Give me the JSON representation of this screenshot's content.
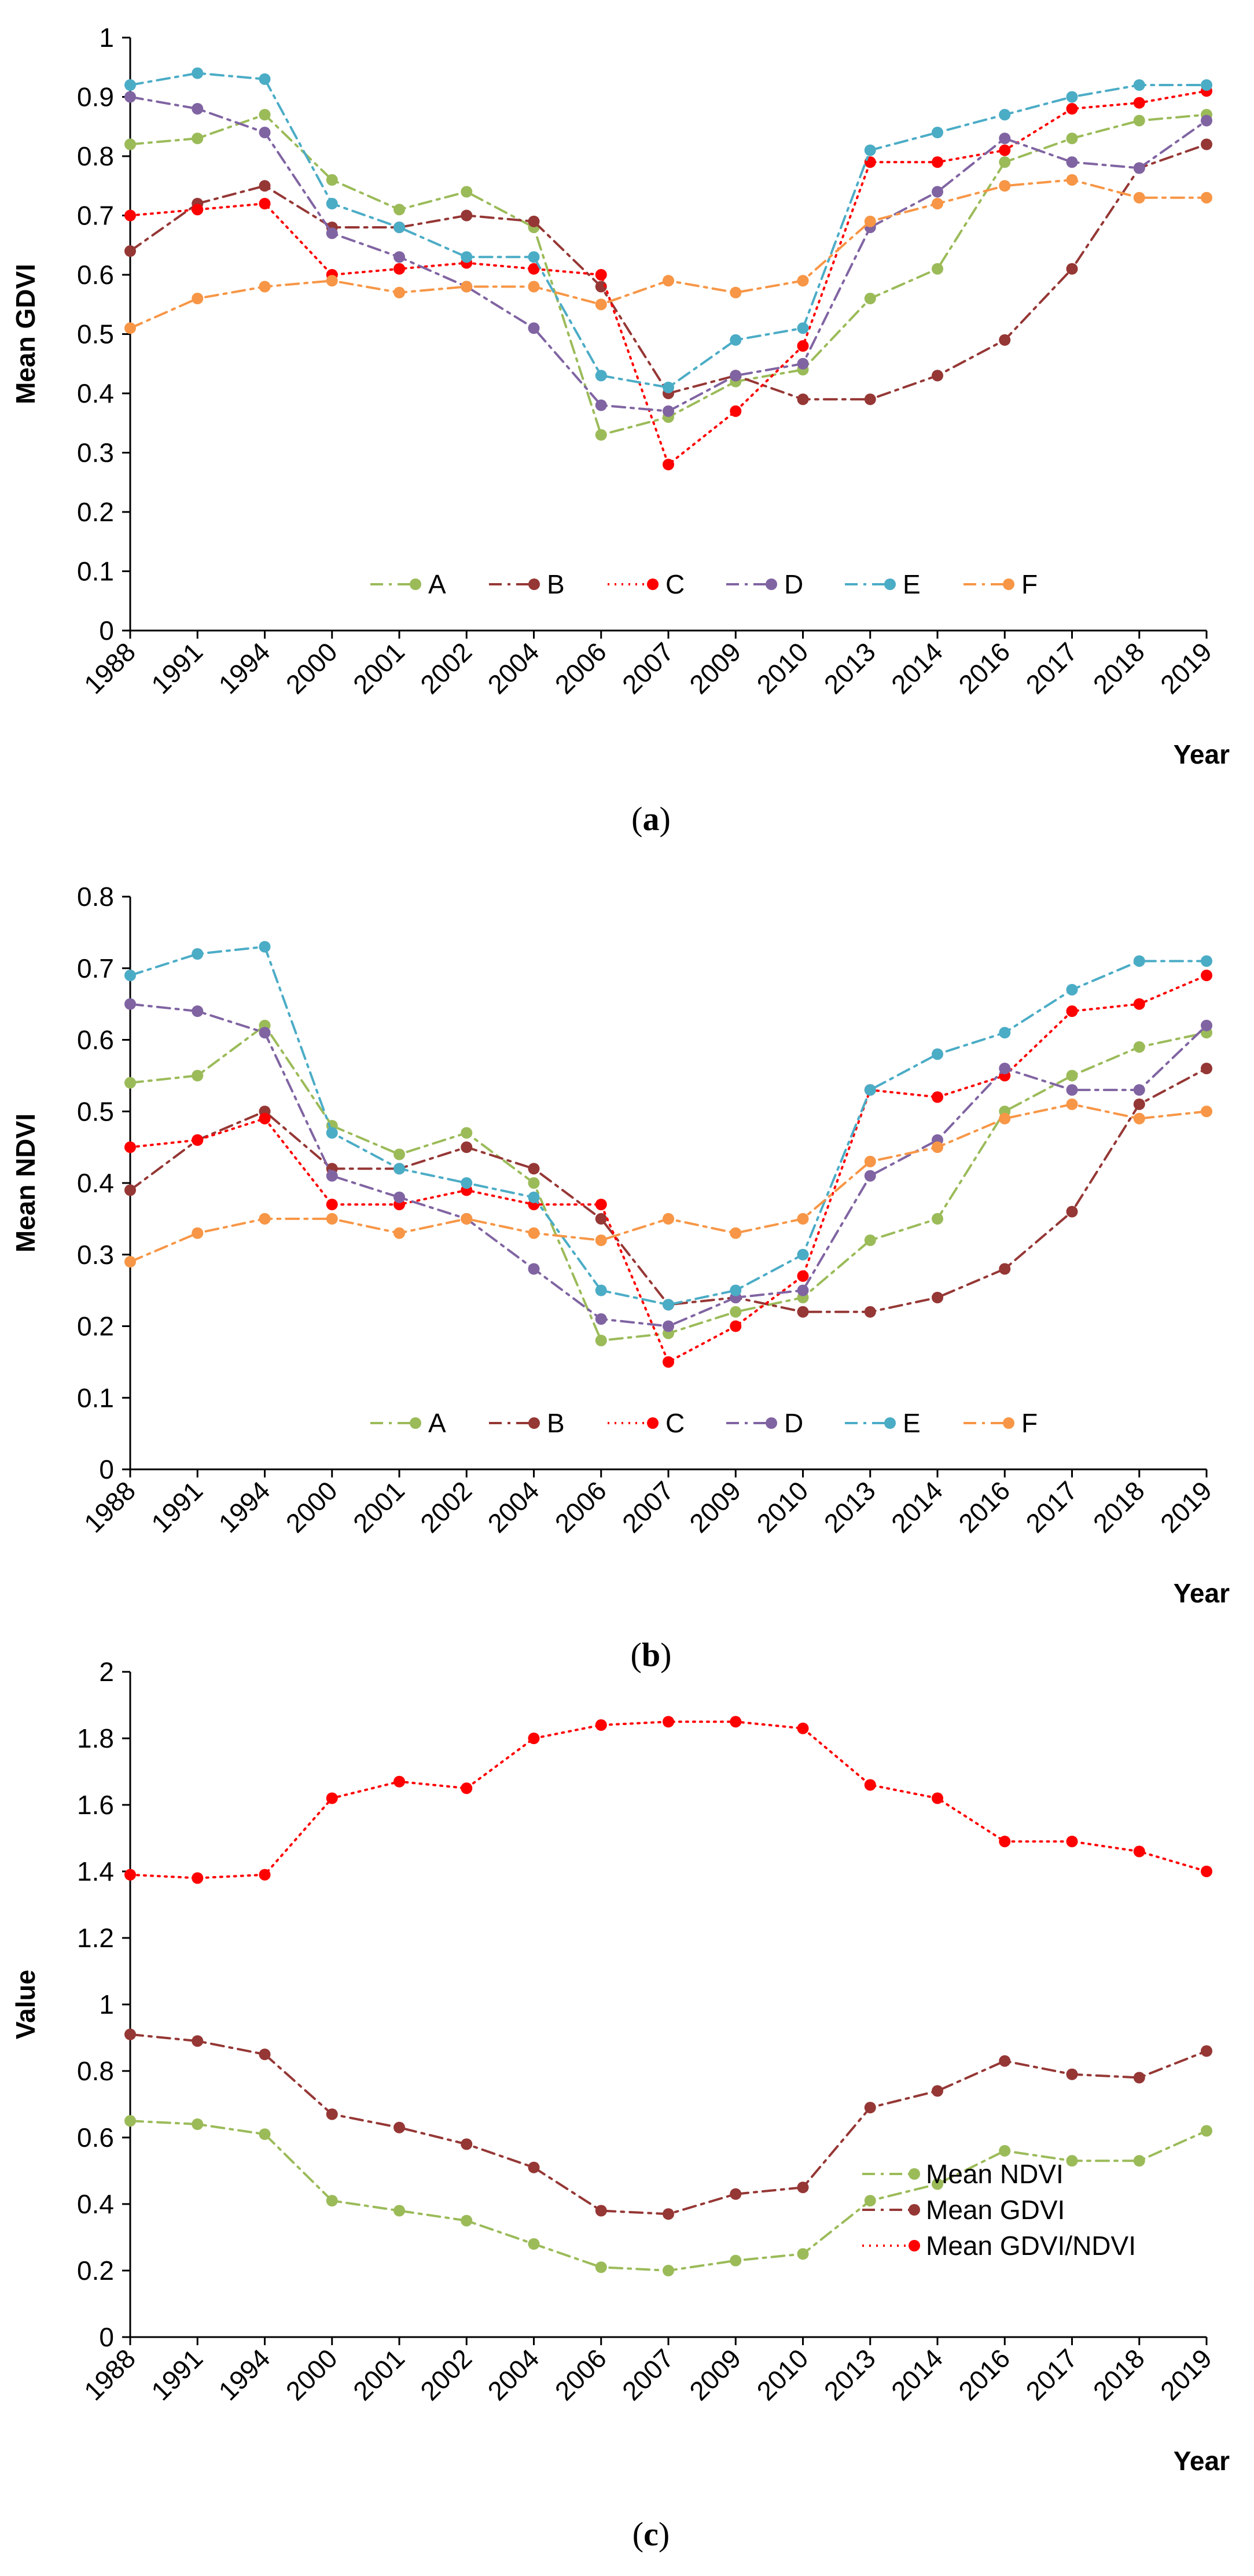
{
  "chart_data": [
    {
      "type": "line",
      "caption": "a",
      "categories": [
        "1988",
        "1991",
        "1994",
        "2000",
        "2001",
        "2002",
        "2004",
        "2006",
        "2007",
        "2009",
        "2010",
        "2013",
        "2014",
        "2016",
        "2017",
        "2018",
        "2019"
      ],
      "ylabel": "Mean GDVI",
      "xlabel": "Year",
      "ylim": [
        0,
        1
      ],
      "yticks": [
        "0",
        "0.1",
        "0.2",
        "0.3",
        "0.4",
        "0.5",
        "0.6",
        "0.7",
        "0.8",
        "0.9",
        "1"
      ],
      "legend": "bottom-center",
      "series": [
        {
          "name": "A",
          "color": "#9bbb59",
          "dash": "dashdot",
          "values": [
            0.82,
            0.83,
            0.87,
            0.76,
            0.71,
            0.74,
            0.68,
            0.33,
            0.36,
            0.42,
            0.44,
            0.56,
            0.61,
            0.79,
            0.83,
            0.86,
            0.87
          ]
        },
        {
          "name": "B",
          "color": "#953735",
          "dash": "dashdot",
          "values": [
            0.64,
            0.72,
            0.75,
            0.68,
            0.68,
            0.7,
            0.69,
            0.58,
            0.4,
            0.43,
            0.39,
            0.39,
            0.43,
            0.49,
            0.61,
            0.78,
            0.82
          ]
        },
        {
          "name": "C",
          "color": "#ff0000",
          "dash": "dot",
          "values": [
            0.7,
            0.71,
            0.72,
            0.6,
            0.61,
            0.62,
            0.61,
            0.6,
            0.28,
            0.37,
            0.48,
            0.79,
            0.79,
            0.81,
            0.88,
            0.89,
            0.91
          ]
        },
        {
          "name": "D",
          "color": "#8064a2",
          "dash": "dashdot",
          "values": [
            0.9,
            0.88,
            0.84,
            0.67,
            0.63,
            0.58,
            0.51,
            0.38,
            0.37,
            0.43,
            0.45,
            0.68,
            0.74,
            0.83,
            0.79,
            0.78,
            0.86
          ]
        },
        {
          "name": "E",
          "color": "#4bacc6",
          "dash": "dashdot",
          "values": [
            0.92,
            0.94,
            0.93,
            0.72,
            0.68,
            0.63,
            0.63,
            0.43,
            0.41,
            0.49,
            0.51,
            0.81,
            0.84,
            0.87,
            0.9,
            0.92,
            0.92
          ]
        },
        {
          "name": "F",
          "color": "#f79646",
          "dash": "dashdot",
          "values": [
            0.51,
            0.56,
            0.58,
            0.59,
            0.57,
            0.58,
            0.58,
            0.55,
            0.59,
            0.57,
            0.59,
            0.69,
            0.72,
            0.75,
            0.76,
            0.73,
            0.73
          ]
        }
      ]
    },
    {
      "type": "line",
      "caption": "b",
      "categories": [
        "1988",
        "1991",
        "1994",
        "2000",
        "2001",
        "2002",
        "2004",
        "2006",
        "2007",
        "2009",
        "2010",
        "2013",
        "2014",
        "2016",
        "2017",
        "2018",
        "2019"
      ],
      "ylabel": "Mean NDVI",
      "xlabel": "Year",
      "ylim": [
        0,
        0.8
      ],
      "yticks": [
        "0",
        "0.1",
        "0.2",
        "0.3",
        "0.4",
        "0.5",
        "0.6",
        "0.7",
        "0.8"
      ],
      "legend": "bottom-center",
      "series": [
        {
          "name": "A",
          "color": "#9bbb59",
          "dash": "dashdot",
          "values": [
            0.54,
            0.55,
            0.62,
            0.48,
            0.44,
            0.47,
            0.4,
            0.18,
            0.19,
            0.22,
            0.24,
            0.32,
            0.35,
            0.5,
            0.55,
            0.59,
            0.61
          ]
        },
        {
          "name": "B",
          "color": "#953735",
          "dash": "dashdot",
          "values": [
            0.39,
            0.46,
            0.5,
            0.42,
            0.42,
            0.45,
            0.42,
            0.35,
            0.23,
            0.24,
            0.22,
            0.22,
            0.24,
            0.28,
            0.36,
            0.51,
            0.56
          ]
        },
        {
          "name": "C",
          "color": "#ff0000",
          "dash": "dot",
          "values": [
            0.45,
            0.46,
            0.49,
            0.37,
            0.37,
            0.39,
            0.37,
            0.37,
            0.15,
            0.2,
            0.27,
            0.53,
            0.52,
            0.55,
            0.64,
            0.65,
            0.69
          ]
        },
        {
          "name": "D",
          "color": "#8064a2",
          "dash": "dashdot",
          "values": [
            0.65,
            0.64,
            0.61,
            0.41,
            0.38,
            0.35,
            0.28,
            0.21,
            0.2,
            0.24,
            0.25,
            0.41,
            0.46,
            0.56,
            0.53,
            0.53,
            0.62
          ]
        },
        {
          "name": "E",
          "color": "#4bacc6",
          "dash": "dashdot",
          "values": [
            0.69,
            0.72,
            0.73,
            0.47,
            0.42,
            0.4,
            0.38,
            0.25,
            0.23,
            0.25,
            0.3,
            0.53,
            0.58,
            0.61,
            0.67,
            0.71,
            0.71
          ]
        },
        {
          "name": "F",
          "color": "#f79646",
          "dash": "dashdot",
          "values": [
            0.29,
            0.33,
            0.35,
            0.35,
            0.33,
            0.35,
            0.33,
            0.32,
            0.35,
            0.33,
            0.35,
            0.43,
            0.45,
            0.49,
            0.51,
            0.49,
            0.5
          ]
        }
      ]
    },
    {
      "type": "line",
      "caption": "c",
      "categories": [
        "1988",
        "1991",
        "1994",
        "2000",
        "2001",
        "2002",
        "2004",
        "2006",
        "2007",
        "2009",
        "2010",
        "2013",
        "2014",
        "2016",
        "2017",
        "2018",
        "2019"
      ],
      "ylabel": "Value",
      "xlabel": "Year",
      "ylim": [
        0,
        2
      ],
      "yticks": [
        "0",
        "0.2",
        "0.4",
        "0.6",
        "0.8",
        "1",
        "1.2",
        "1.4",
        "1.6",
        "1.8",
        "2"
      ],
      "legend": "bottom-right",
      "series": [
        {
          "name": "Mean NDVI",
          "color": "#9bbb59",
          "dash": "dashdot",
          "values": [
            0.65,
            0.64,
            0.61,
            0.41,
            0.38,
            0.35,
            0.28,
            0.21,
            0.2,
            0.23,
            0.25,
            0.41,
            0.46,
            0.56,
            0.53,
            0.53,
            0.62
          ]
        },
        {
          "name": "Mean GDVI",
          "color": "#953735",
          "dash": "dashdot",
          "values": [
            0.91,
            0.89,
            0.85,
            0.67,
            0.63,
            0.58,
            0.51,
            0.38,
            0.37,
            0.43,
            0.45,
            0.69,
            0.74,
            0.83,
            0.79,
            0.78,
            0.86
          ]
        },
        {
          "name": "Mean GDVI/NDVI",
          "color": "#ff0000",
          "dash": "dot",
          "values": [
            1.39,
            1.38,
            1.39,
            1.62,
            1.67,
            1.65,
            1.8,
            1.84,
            1.85,
            1.85,
            1.83,
            1.66,
            1.62,
            1.49,
            1.49,
            1.46,
            1.4
          ]
        }
      ]
    }
  ]
}
